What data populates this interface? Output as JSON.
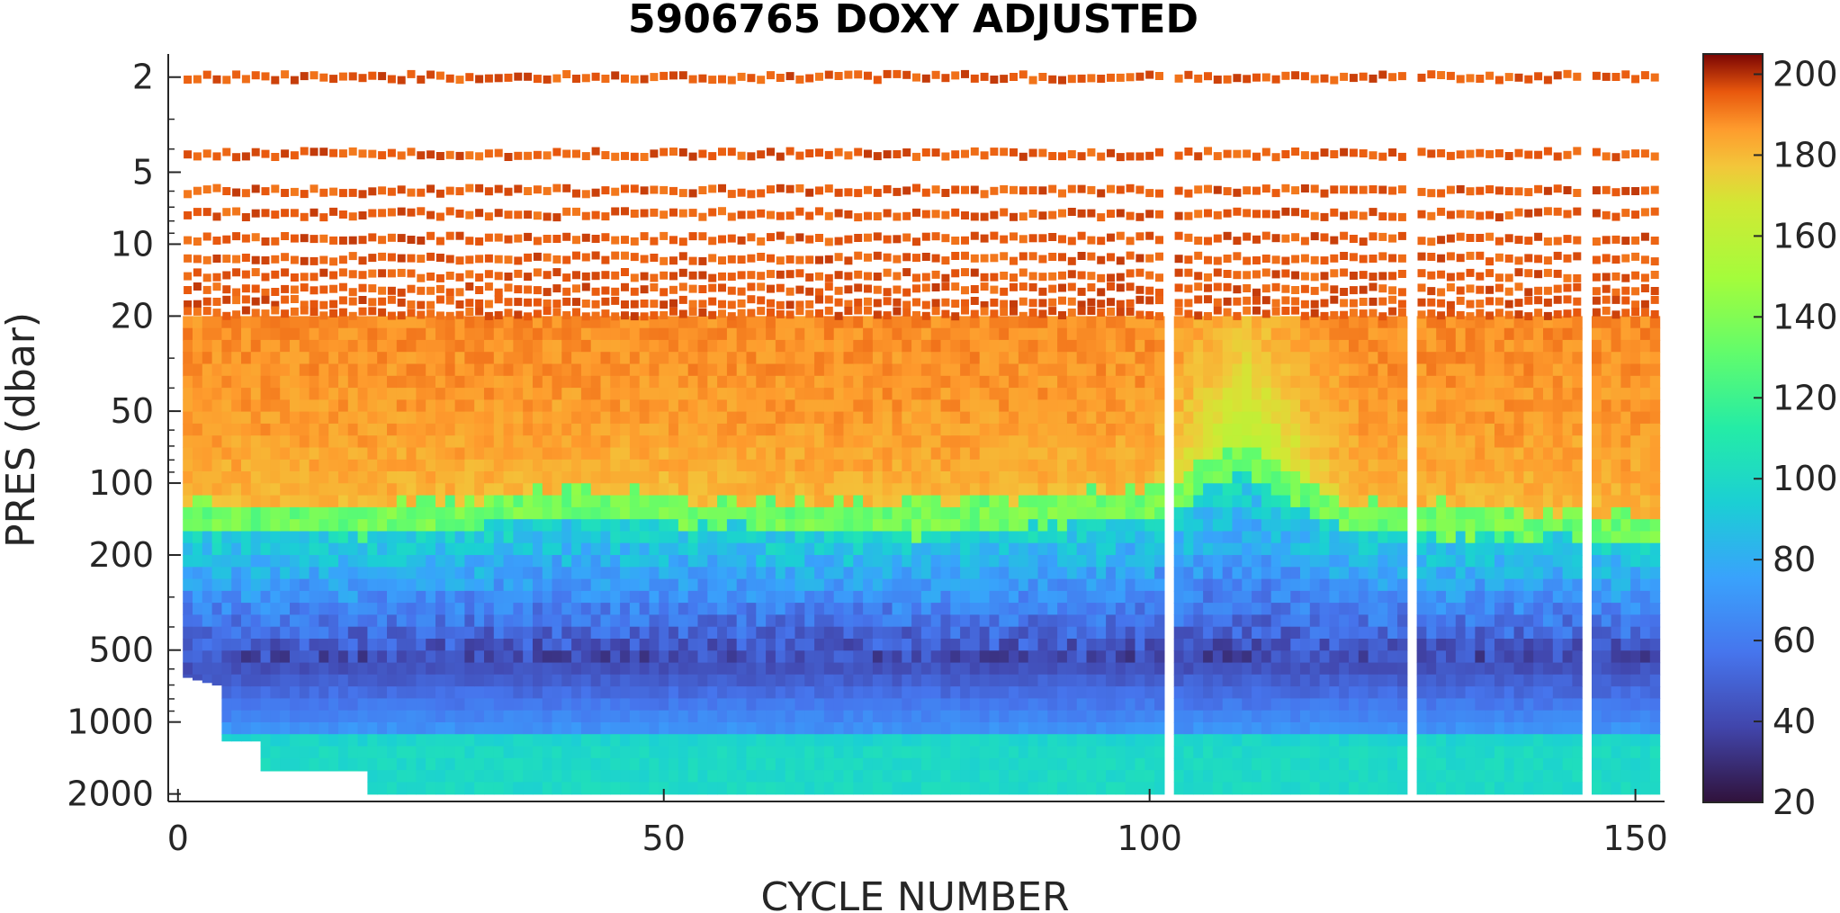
{
  "chart_data": {
    "type": "heatmap",
    "title": "5906765  DOXY ADJUSTED",
    "xlabel": "CYCLE NUMBER",
    "ylabel": "PRES (dbar)",
    "x_range": [
      -1,
      153
    ],
    "x_ticks": [
      0,
      50,
      100,
      150
    ],
    "y_scale": "log",
    "y_reversed": true,
    "y_range": [
      1.6,
      2150
    ],
    "y_ticks": [
      2,
      5,
      10,
      20,
      50,
      100,
      200,
      500,
      1000,
      2000
    ],
    "colorbar": {
      "colormap": "turbo",
      "range": [
        20,
        205
      ],
      "ticks": [
        20,
        40,
        60,
        80,
        100,
        120,
        140,
        160,
        180,
        200
      ]
    },
    "cycles": [
      1,
      152
    ],
    "missing_cycles": [
      102,
      127,
      145
    ],
    "surface_levels_dbar": [
      2,
      4.2,
      6,
      7.5,
      9.5,
      11.5,
      13.5,
      15.5,
      17.5,
      19.5
    ],
    "mixed_layer_doxy_umol_kg": 190,
    "oxycline_depth_dbar": {
      "cycles": [
        1,
        20,
        40,
        60,
        80,
        100,
        110,
        120,
        152
      ],
      "depth": [
        150,
        160,
        130,
        150,
        155,
        130,
        85,
        150,
        170
      ]
    },
    "oxygen_minimum": {
      "depth_dbar": 550,
      "doxy_umol_kg": 25
    },
    "deep_doxy_umol_kg": {
      "at_1000_dbar": 75,
      "at_2000_dbar": 100
    },
    "profile_bottom_dbar": {
      "cycles": [
        1,
        4,
        5,
        8,
        9,
        19,
        20,
        152
      ],
      "bottom": [
        650,
        700,
        1200,
        1200,
        1600,
        1600,
        2000,
        2000
      ]
    }
  }
}
